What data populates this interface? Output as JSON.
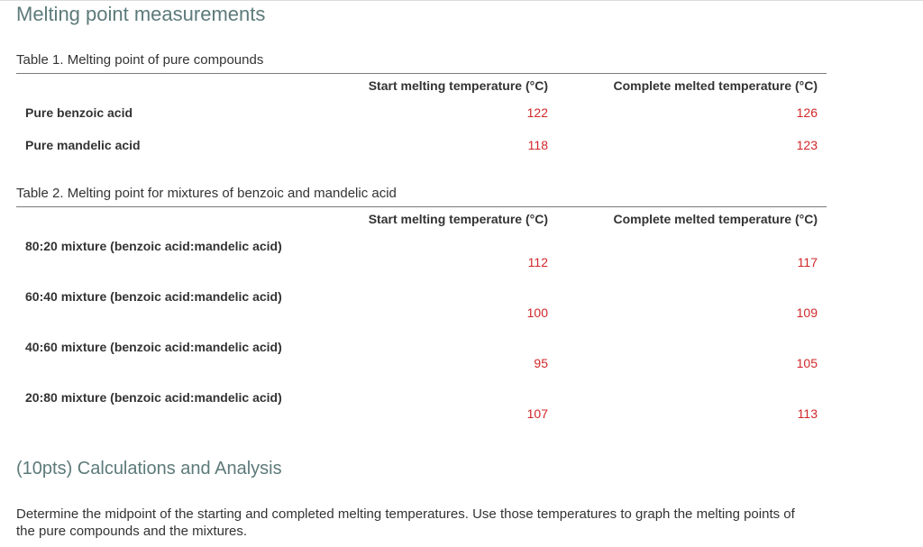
{
  "page_title": "Melting point measurements",
  "table1": {
    "caption": "Table 1. Melting point of pure compounds",
    "headers": [
      "Start melting temperature (°C)",
      "Complete melted temperature (°C)"
    ],
    "rows": [
      {
        "label": "Pure benzoic acid",
        "start": "122",
        "complete": "126"
      },
      {
        "label": "Pure mandelic acid",
        "start": "118",
        "complete": "123"
      }
    ]
  },
  "table2": {
    "caption": "Table 2. Melting point for mixtures of benzoic and mandelic acid",
    "headers": [
      "Start melting temperature (°C)",
      "Complete melted temperature (°C)"
    ],
    "rows": [
      {
        "label": "80:20 mixture (benzoic acid:mandelic acid)",
        "start": "112",
        "complete": "117"
      },
      {
        "label": "60:40 mixture (benzoic acid:mandelic acid)",
        "start": "100",
        "complete": "109"
      },
      {
        "label": "40:60 mixture (benzoic acid:mandelic acid)",
        "start": "95",
        "complete": "105"
      },
      {
        "label": "20:80 mixture (benzoic acid:mandelic acid)",
        "start": "107",
        "complete": "113"
      }
    ]
  },
  "analysis": {
    "title": "(10pts) Calculations and Analysis",
    "text": "Determine the midpoint of the starting and completed melting temperatures. Use those temperatures to graph the melting points of the pure compounds and the mixtures."
  },
  "colors": {
    "title": "#5d7a7a",
    "value": "#d1272a",
    "rule": "#7a7a7a"
  }
}
